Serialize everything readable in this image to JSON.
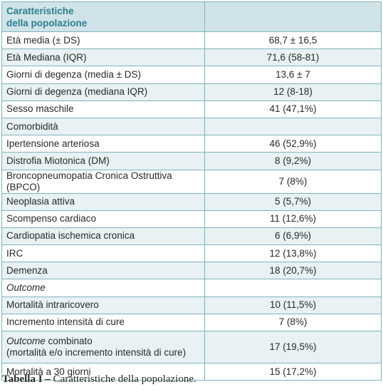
{
  "table": {
    "header": {
      "line1": "Caratteristiche",
      "line2": "della popolazione",
      "value": ""
    },
    "rows": [
      {
        "label": "Età media (± DS)",
        "value": "68,7 ± 16,5",
        "italic": false
      },
      {
        "label": "Età Mediana (IQR)",
        "value": "71,6 (58-81)",
        "italic": false
      },
      {
        "label": "Giorni di degenza (media ± DS)",
        "value": "13,6 ± 7",
        "italic": false
      },
      {
        "label": "Giorni di degenza (mediana IQR)",
        "value": "12 (8-18)",
        "italic": false
      },
      {
        "label": "Sesso maschile",
        "value": "41 (47,1%)",
        "italic": false
      },
      {
        "label": "Comorbidità",
        "value": "",
        "italic": false
      },
      {
        "label": "Ipertensione arteriosa",
        "value": "46 (52,9%)",
        "italic": false
      },
      {
        "label": "Distrofia Miotonica (DM)",
        "value": "8 (9,2%)",
        "italic": false
      },
      {
        "label": "Broncopneumopatia Cronica Ostruttiva (BPCO)",
        "value": "7 (8%)",
        "italic": false
      },
      {
        "label": "Neoplasia attiva",
        "value": "5 (5,7%)",
        "italic": false
      },
      {
        "label": "Scompenso cardiaco",
        "value": "11 (12,6%)",
        "italic": false
      },
      {
        "label": "Cardiopatia ischemica cronica",
        "value": "6 (6,9%)",
        "italic": false
      },
      {
        "label": "IRC",
        "value": "12 (13,8%)",
        "italic": false
      },
      {
        "label": "Demenza",
        "value": "18 (20,7%)",
        "italic": false
      },
      {
        "label": "Outcome",
        "value": "",
        "italic": true
      },
      {
        "label": "Mortalità intraricovero",
        "value": "10 (11,5%)",
        "italic": false
      },
      {
        "label": "Incremento intensità di cure",
        "value": "7 (8%)",
        "italic": false
      },
      {
        "label_italic": "Outcome",
        "label_rest": " combinato",
        "label_line2": "(mortalità e/o incremento intensità di cure)",
        "value": "17 (19,5%)"
      },
      {
        "label": "Mortalità a 30 giorni",
        "value": "15 (17,2%)",
        "italic": false
      }
    ]
  },
  "caption": {
    "prefix": "Tabella I –",
    "text": " Caratteristiche della popolazione."
  }
}
